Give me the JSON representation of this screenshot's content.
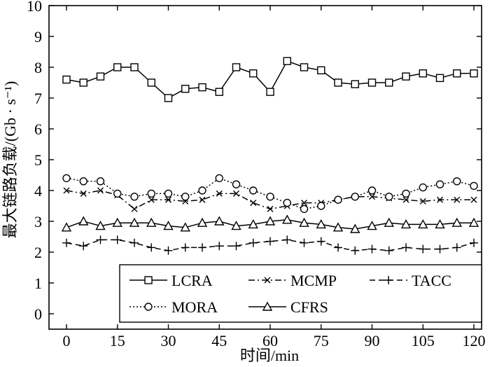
{
  "chart_data": {
    "type": "line",
    "xlabel": "时间/min",
    "ylabel": "最大链路负载/(Gb · s⁻¹)",
    "xlim": [
      0,
      120
    ],
    "ylim": [
      0,
      10
    ],
    "x_ticks": [
      0,
      15,
      30,
      45,
      60,
      75,
      90,
      105,
      120
    ],
    "y_ticks": [
      0,
      1,
      2,
      3,
      4,
      5,
      6,
      7,
      8,
      9,
      10
    ],
    "x": [
      0,
      5,
      10,
      15,
      20,
      25,
      30,
      35,
      40,
      45,
      50,
      55,
      60,
      65,
      70,
      75,
      80,
      85,
      90,
      95,
      100,
      105,
      110,
      115,
      120
    ],
    "series": [
      {
        "name": "LCRA",
        "marker": "square",
        "dash": "solid",
        "values": [
          7.6,
          7.5,
          7.7,
          8.0,
          8.0,
          7.5,
          7.0,
          7.3,
          7.35,
          7.2,
          8.0,
          7.8,
          7.2,
          8.2,
          8.0,
          7.9,
          7.5,
          7.45,
          7.5,
          7.5,
          7.7,
          7.8,
          7.65,
          7.8,
          7.8
        ]
      },
      {
        "name": "MCMP",
        "marker": "x",
        "dash": "dashdot",
        "values": [
          4.0,
          3.9,
          4.0,
          3.85,
          3.4,
          3.7,
          3.7,
          3.65,
          3.7,
          3.9,
          3.9,
          3.6,
          3.4,
          3.5,
          3.6,
          3.6,
          3.7,
          3.8,
          3.8,
          3.75,
          3.7,
          3.65,
          3.7,
          3.7,
          3.7
        ]
      },
      {
        "name": "TACC",
        "marker": "plus",
        "dash": "dashed",
        "values": [
          2.3,
          2.2,
          2.4,
          2.4,
          2.3,
          2.15,
          2.05,
          2.15,
          2.15,
          2.2,
          2.2,
          2.3,
          2.35,
          2.4,
          2.3,
          2.35,
          2.15,
          2.05,
          2.1,
          2.05,
          2.15,
          2.1,
          2.1,
          2.15,
          2.3
        ]
      },
      {
        "name": "MORA",
        "marker": "circle",
        "dash": "dotted",
        "values": [
          4.4,
          4.3,
          4.3,
          3.9,
          3.8,
          3.9,
          3.9,
          3.8,
          4.0,
          4.4,
          4.2,
          4.0,
          3.8,
          3.6,
          3.4,
          3.5,
          3.7,
          3.8,
          4.0,
          3.8,
          3.9,
          4.1,
          4.2,
          4.3,
          4.15
        ]
      },
      {
        "name": "CFRS",
        "marker": "triangle",
        "dash": "solid",
        "values": [
          2.8,
          3.0,
          2.85,
          2.95,
          2.95,
          2.95,
          2.85,
          2.8,
          2.95,
          3.0,
          2.85,
          2.9,
          3.0,
          3.05,
          2.95,
          2.9,
          2.8,
          2.75,
          2.85,
          2.95,
          2.9,
          2.9,
          2.9,
          2.95,
          2.95
        ]
      }
    ],
    "legend": {
      "position": "bottom-inside",
      "rows": [
        [
          "LCRA",
          "MCMP",
          "TACC"
        ],
        [
          "MORA",
          "CFRS"
        ]
      ]
    }
  }
}
